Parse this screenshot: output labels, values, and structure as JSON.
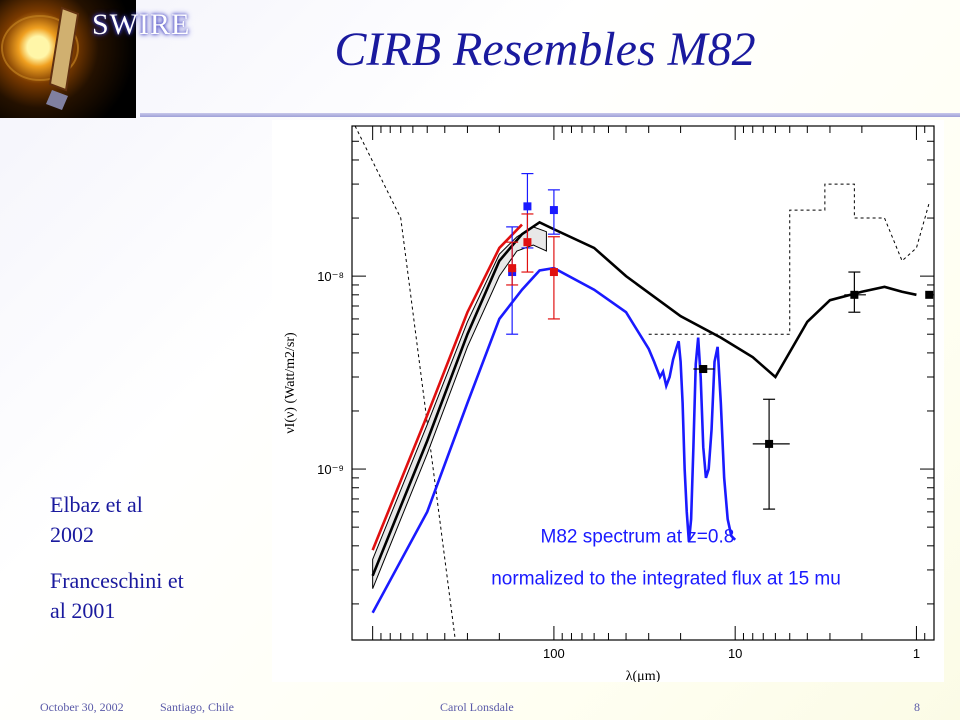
{
  "slide": {
    "title": "CIRB Resembles M82",
    "logo_text": "SWIRE",
    "notes": [
      "Elbaz et al 2002",
      "Franceschini et al 2001"
    ]
  },
  "footer": {
    "date": "October 30, 2002",
    "place": "Santiago, Chile",
    "author": "Carol Lonsdale",
    "page": "8"
  },
  "colors": {
    "title": "#1a1a9e",
    "accent_blue": "#1a1aff",
    "accent_red": "#e01010",
    "model": "#000000"
  },
  "chart_data": {
    "type": "line",
    "xlabel": "λ(μm)",
    "ylabel": "νI(ν) (Watt/m2/sr)",
    "x_scale": "log",
    "x_reversed": true,
    "y_scale": "log",
    "xlim": [
      1300,
      0.8
    ],
    "ylim": [
      1.3e-10,
      6e-08
    ],
    "x_ticks": [
      {
        "v": 100,
        "label": "100"
      },
      {
        "v": 10,
        "label": "10"
      },
      {
        "v": 1,
        "label": "1"
      }
    ],
    "y_ticks": [
      {
        "v": 1e-08,
        "label": "10⁻⁸"
      },
      {
        "v": 1e-09,
        "label": "10⁻⁹"
      }
    ],
    "annotations": [
      "M82   spectrum  at   z=0.8",
      "normalized to the integrated flux at 15 mu"
    ],
    "series": [
      {
        "color": "#000000",
        "x": [
          1000,
          500,
          300,
          200,
          150,
          120,
          100,
          60,
          40,
          20,
          12,
          8,
          6,
          4,
          3,
          2,
          1.5,
          1.2,
          1
        ],
        "y": [
          2.8e-10,
          1.4e-09,
          5e-09,
          1.2e-08,
          1.65e-08,
          1.9e-08,
          1.75e-08,
          1.4e-08,
          1e-08,
          6.2e-09,
          4.8e-09,
          3.8e-09,
          3e-09,
          5.8e-09,
          7.5e-09,
          8.3e-09,
          8.8e-09,
          8.3e-09,
          8e-09
        ]
      },
      {
        "color": "#1a1aff",
        "x": [
          1000,
          500,
          300,
          200,
          150,
          120,
          100,
          60,
          40,
          30,
          28,
          26,
          25,
          24,
          23,
          22,
          21,
          20.5,
          20,
          19.5,
          19,
          18.5,
          18,
          17.5,
          17,
          16.5,
          16,
          15.5,
          15,
          14.5,
          14,
          13.5,
          13,
          12.5,
          12,
          11.5,
          11,
          10.5,
          10
        ],
        "y": [
          1.8e-10,
          6e-10,
          2.2e-09,
          6e-09,
          8.5e-09,
          1.07e-08,
          1.1e-08,
          8.5e-09,
          6.5e-09,
          4.2e-09,
          3.6e-09,
          3e-09,
          3.2e-09,
          2.7e-09,
          3e-09,
          3.7e-09,
          4.3e-09,
          4.6e-09,
          3.6e-09,
          2.2e-09,
          1e-09,
          6e-10,
          4.2e-10,
          5.5e-10,
          1.3e-09,
          3.5e-09,
          4.8e-09,
          3e-09,
          1.3e-09,
          9e-10,
          1e-09,
          1.6e-09,
          3.6e-09,
          4.3e-09,
          2.2e-09,
          9e-10,
          5.5e-10,
          4.5e-10,
          4.3e-10
        ]
      },
      {
        "color": "#e01010",
        "x": [
          1000,
          500,
          300,
          200,
          150
        ],
        "y": [
          3.8e-10,
          1.9e-09,
          6.5e-09,
          1.4e-08,
          1.85e-08
        ]
      }
    ],
    "points": [
      {
        "color": "#1a1aff",
        "x": 170,
        "y": 1.05e-08,
        "y_lo": 5e-09,
        "y_hi": 1.8e-08
      },
      {
        "color": "#1a1aff",
        "x": 140,
        "y": 2.3e-08,
        "y_lo": 1.4e-08,
        "y_hi": 3.4e-08
      },
      {
        "color": "#1a1aff",
        "x": 100,
        "y": 2.2e-08,
        "y_lo": 1.65e-08,
        "y_hi": 2.8e-08
      },
      {
        "color": "#e01010",
        "x": 170,
        "y": 1.1e-08,
        "y_lo": 9e-09,
        "y_hi": 1.5e-08
      },
      {
        "color": "#e01010",
        "x": 140,
        "y": 1.5e-08,
        "y_lo": 1.05e-08,
        "y_hi": 2.1e-08
      },
      {
        "color": "#e01010",
        "x": 100,
        "y": 1.05e-08,
        "y_lo": 6e-09,
        "y_hi": 1.6e-08
      },
      {
        "color": "#000000",
        "x": 15,
        "y": 3.3e-09,
        "x_lo": 13,
        "x_hi": 17
      },
      {
        "color": "#000000",
        "x": 6.5,
        "y": 1.35e-09,
        "x_lo": 5,
        "x_hi": 8,
        "y_lo": 6.2e-10,
        "y_hi": 2.3e-09
      },
      {
        "color": "#000000",
        "x": 2.2,
        "y": 8e-09,
        "x_lo": 1.9,
        "x_hi": 2.5,
        "y_lo": 6.5e-09,
        "y_hi": 1.05e-08
      },
      {
        "color": "#000000",
        "x": 0.85,
        "y": 8e-09
      }
    ]
  }
}
